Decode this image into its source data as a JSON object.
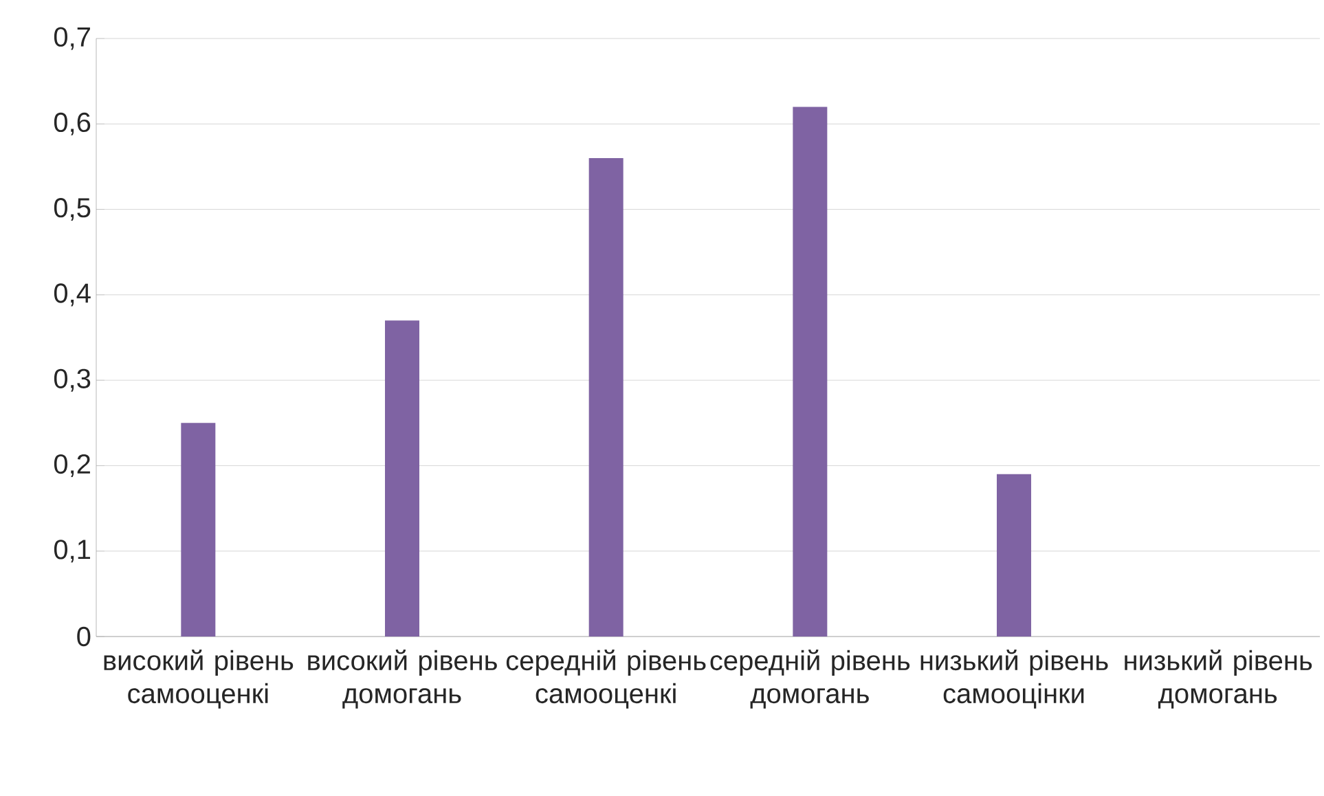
{
  "chart_data": {
    "type": "bar",
    "categories": [
      "високий рівень самооценкі",
      "високий рівень домогань",
      "середній рівень самооценкі",
      "середній рівень домогань",
      "низький рівень самооцінки",
      "низький рівень домогань"
    ],
    "values": [
      0.25,
      0.37,
      0.56,
      0.62,
      0.19,
      0
    ],
    "color": "#7f63a3",
    "ylim": [
      0,
      0.7
    ],
    "yticks": [
      {
        "value": 0,
        "label": "0"
      },
      {
        "value": 0.1,
        "label": "0,1"
      },
      {
        "value": 0.2,
        "label": "0,2"
      },
      {
        "value": 0.3,
        "label": "0,3"
      },
      {
        "value": 0.4,
        "label": "0,4"
      },
      {
        "value": 0.5,
        "label": "0,5"
      },
      {
        "value": 0.6,
        "label": "0,6"
      },
      {
        "value": 0.7,
        "label": "0,7"
      }
    ],
    "grid": "y"
  }
}
